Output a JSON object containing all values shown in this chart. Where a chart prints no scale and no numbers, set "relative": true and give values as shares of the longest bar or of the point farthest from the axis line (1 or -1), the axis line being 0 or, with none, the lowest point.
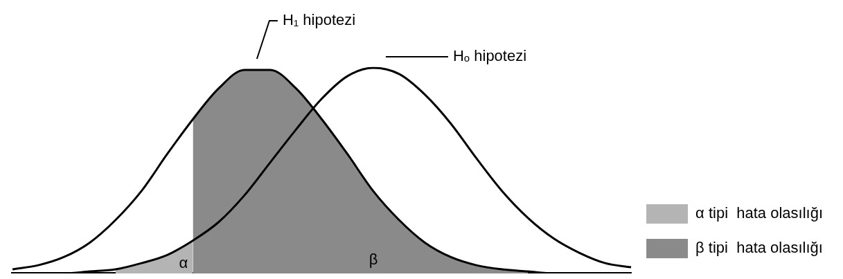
{
  "chart_data": {
    "type": "line",
    "relative": true,
    "categories": [
      null,
      null,
      null,
      null,
      null,
      null,
      null,
      null,
      null,
      null,
      null,
      null,
      null,
      null,
      null,
      null,
      null,
      null,
      null,
      null,
      null,
      null,
      null,
      null,
      null
    ],
    "series": [
      {
        "color": "#000000",
        "values": [
          0.02,
          0.04,
          0.08,
          0.15,
          0.26,
          0.4,
          0.58,
          0.75,
          0.9,
          0.99,
          0.99,
          0.9,
          0.75,
          0.58,
          0.4,
          0.26,
          0.15,
          0.08,
          0.04,
          0.02,
          0.01,
          0,
          0,
          0,
          0
        ]
      },
      {
        "color": "#000000",
        "values": [
          0,
          0,
          0,
          0.01,
          0.02,
          0.05,
          0.09,
          0.16,
          0.25,
          0.38,
          0.54,
          0.7,
          0.85,
          0.96,
          1.0,
          0.97,
          0.87,
          0.73,
          0.56,
          0.4,
          0.27,
          0.17,
          0.1,
          0.05,
          0.03
        ]
      },
      {
        "type": "area",
        "name": "α tipi  hata olasılığı",
        "color": "#b4b4b4",
        "values": [
          null,
          null,
          null,
          null,
          0.02,
          0.05,
          0.09,
          0.16,
          null,
          null,
          null,
          null,
          null,
          null,
          null,
          null,
          null,
          null,
          null,
          null,
          null,
          null,
          null,
          null,
          null
        ]
      },
      {
        "type": "area",
        "name": "β tipi  hata olasılığı",
        "color": "#8a8a8a",
        "values": [
          null,
          null,
          null,
          null,
          null,
          null,
          null,
          0.75,
          0.9,
          0.99,
          0.99,
          0.9,
          0.75,
          0.58,
          0.4,
          0.26,
          0.15,
          0.08,
          0.04,
          0.02,
          0.01,
          null,
          null,
          null,
          null
        ]
      }
    ],
    "annotations": [
      "H₁ hipotezi",
      "Hₒ hipotezi",
      "α",
      "β"
    ],
    "legend": "right",
    "grid": false,
    "marker": "none",
    "line_style": "solid"
  }
}
